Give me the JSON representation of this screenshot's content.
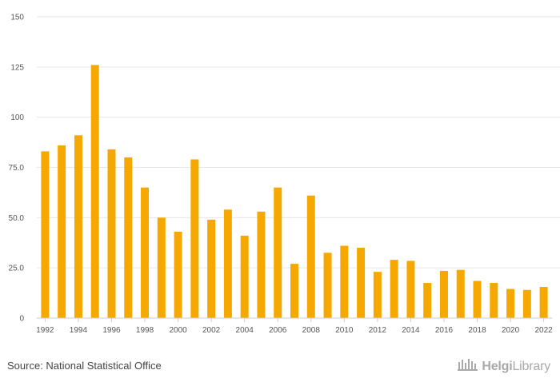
{
  "chart_data": {
    "type": "bar",
    "title": "",
    "xlabel": "",
    "ylabel": "",
    "categories": [
      "1992",
      "1993",
      "1994",
      "1995",
      "1996",
      "1997",
      "1998",
      "1999",
      "2000",
      "2001",
      "2002",
      "2003",
      "2004",
      "2005",
      "2006",
      "2007",
      "2008",
      "2009",
      "2010",
      "2011",
      "2012",
      "2013",
      "2014",
      "2015",
      "2016",
      "2017",
      "2018",
      "2019",
      "2020",
      "2021",
      "2022"
    ],
    "values": [
      83,
      86,
      91,
      126,
      84,
      80,
      65,
      50,
      43,
      79,
      49,
      54,
      41,
      53,
      65,
      27,
      61,
      32.5,
      36,
      35,
      23,
      29,
      28.5,
      17.5,
      23.5,
      24,
      18.5,
      17.5,
      14.5,
      14,
      15.5
    ],
    "ylim": [
      0,
      150
    ],
    "y_ticks": [
      "0",
      "25.0",
      "50.0",
      "75.0",
      "100",
      "125",
      "150"
    ],
    "x_tick_labels": [
      "1992",
      "1994",
      "1996",
      "1998",
      "2000",
      "2002",
      "2004",
      "2006",
      "2008",
      "2010",
      "2012",
      "2014",
      "2016",
      "2018",
      "2020",
      "2022"
    ],
    "grid": true,
    "bar_color": "#f5a800"
  },
  "footer": {
    "source": "Source: National Statistical Office",
    "logo_bold": "Helgi",
    "logo_rest": "Library"
  },
  "colors": {
    "grid": "#e6e6e6",
    "axis": "#cccccc",
    "logo": "#a9a9a9"
  },
  "icons": [
    "helgilibrary-logo-icon"
  ]
}
